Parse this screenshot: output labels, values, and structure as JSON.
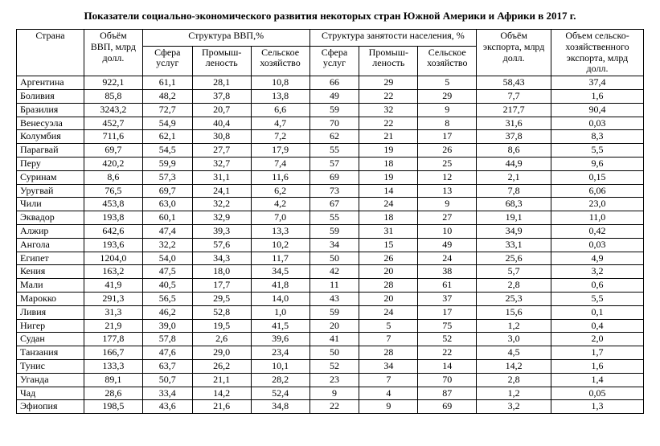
{
  "title": "Показатели социально-экономического развития некоторых стран Южной Америки и Африки в 2017 г.",
  "columns": {
    "country": "Страна",
    "gdp": "Объём ВВП, млрд долл.",
    "gdp_struct": "Структура ВВП,%",
    "emp_struct": "Структура занятости населения, %",
    "export": "Объём экспорта,  млрд долл.",
    "agri_export": "Объем сельско-хозяйственного экспорта, млрд долл.",
    "services": "Сфера услуг",
    "industry": "Промыш-леность",
    "agri": "Сельское хозяйство"
  },
  "rows": [
    {
      "c": "Аргентина",
      "gdp": "922,1",
      "s1": "61,1",
      "s2": "28,1",
      "s3": "10,8",
      "e1": "66",
      "e2": "29",
      "e3": "5",
      "ex": "58,43",
      "ax": "37,4"
    },
    {
      "c": "Боливия",
      "gdp": "85,8",
      "s1": "48,2",
      "s2": "37,8",
      "s3": "13,8",
      "e1": "49",
      "e2": "22",
      "e3": "29",
      "ex": "7,7",
      "ax": "1,6"
    },
    {
      "c": "Бразилия",
      "gdp": "3243,2",
      "s1": "72,7",
      "s2": "20,7",
      "s3": "6,6",
      "e1": "59",
      "e2": "32",
      "e3": "9",
      "ex": "217,7",
      "ax": "90,4"
    },
    {
      "c": "Венесуэла",
      "gdp": "452,7",
      "s1": "54,9",
      "s2": "40,4",
      "s3": "4,7",
      "e1": "70",
      "e2": "22",
      "e3": "8",
      "ex": "31,6",
      "ax": "0,03"
    },
    {
      "c": "Колумбия",
      "gdp": "711,6",
      "s1": "62,1",
      "s2": "30,8",
      "s3": "7,2",
      "e1": "62",
      "e2": "21",
      "e3": "17",
      "ex": "37,8",
      "ax": "8,3"
    },
    {
      "c": "Парагвай",
      "gdp": "69,7",
      "s1": "54,5",
      "s2": "27,7",
      "s3": "17,9",
      "e1": "55",
      "e2": "19",
      "e3": "26",
      "ex": "8,6",
      "ax": "5,5"
    },
    {
      "c": "Перу",
      "gdp": "420,2",
      "s1": "59,9",
      "s2": "32,7",
      "s3": "7,4",
      "e1": "57",
      "e2": "18",
      "e3": "25",
      "ex": "44,9",
      "ax": "9,6"
    },
    {
      "c": "Суринам",
      "gdp": "8,6",
      "s1": "57,3",
      "s2": "31,1",
      "s3": "11,6",
      "e1": "69",
      "e2": "19",
      "e3": "12",
      "ex": "2,1",
      "ax": "0,15"
    },
    {
      "c": "Уругвай",
      "gdp": "76,5",
      "s1": "69,7",
      "s2": "24,1",
      "s3": "6,2",
      "e1": "73",
      "e2": "14",
      "e3": "13",
      "ex": "7,8",
      "ax": "6,06"
    },
    {
      "c": "Чили",
      "gdp": "453,8",
      "s1": "63,0",
      "s2": "32,2",
      "s3": "4,2",
      "e1": "67",
      "e2": "24",
      "e3": "9",
      "ex": "68,3",
      "ax": "23,0"
    },
    {
      "c": "Эквадор",
      "gdp": "193,8",
      "s1": "60,1",
      "s2": "32,9",
      "s3": "7,0",
      "e1": "55",
      "e2": "18",
      "e3": "27",
      "ex": "19,1",
      "ax": "11,0"
    },
    {
      "c": "Алжир",
      "gdp": "642,6",
      "s1": "47,4",
      "s2": "39,3",
      "s3": "13,3",
      "e1": "59",
      "e2": "31",
      "e3": "10",
      "ex": "34,9",
      "ax": "0,42"
    },
    {
      "c": "Ангола",
      "gdp": "193,6",
      "s1": "32,2",
      "s2": "57,6",
      "s3": "10,2",
      "e1": "34",
      "e2": "15",
      "e3": "49",
      "ex": "33,1",
      "ax": "0,03"
    },
    {
      "c": "Египет",
      "gdp": "1204,0",
      "s1": "54,0",
      "s2": "34,3",
      "s3": "11,7",
      "e1": "50",
      "e2": "26",
      "e3": "24",
      "ex": "25,6",
      "ax": "4,9"
    },
    {
      "c": "Кения",
      "gdp": "163,2",
      "s1": "47,5",
      "s2": "18,0",
      "s3": "34,5",
      "e1": "42",
      "e2": "20",
      "e3": "38",
      "ex": "5,7",
      "ax": "3,2"
    },
    {
      "c": "Мали",
      "gdp": "41,9",
      "s1": "40,5",
      "s2": "17,7",
      "s3": "41,8",
      "e1": "11",
      "e2": "28",
      "e3": "61",
      "ex": "2,8",
      "ax": "0,6"
    },
    {
      "c": "Марокко",
      "gdp": "291,3",
      "s1": "56,5",
      "s2": "29,5",
      "s3": "14,0",
      "e1": "43",
      "e2": "20",
      "e3": "37",
      "ex": "25,3",
      "ax": "5,5"
    },
    {
      "c": "Ливия",
      "gdp": "31,3",
      "s1": "46,2",
      "s2": "52,8",
      "s3": "1,0",
      "e1": "59",
      "e2": "24",
      "e3": "17",
      "ex": "15,6",
      "ax": "0,1"
    },
    {
      "c": "Нигер",
      "gdp": "21,9",
      "s1": "39,0",
      "s2": "19,5",
      "s3": "41,5",
      "e1": "20",
      "e2": "5",
      "e3": "75",
      "ex": "1,2",
      "ax": "0,4"
    },
    {
      "c": "Судан",
      "gdp": "177,8",
      "s1": "57,8",
      "s2": "2,6",
      "s3": "39,6",
      "e1": "41",
      "e2": "7",
      "e3": "52",
      "ex": "3,0",
      "ax": "2,0"
    },
    {
      "c": "Танзания",
      "gdp": "166,7",
      "s1": "47,6",
      "s2": "29,0",
      "s3": "23,4",
      "e1": "50",
      "e2": "28",
      "e3": "22",
      "ex": "4,5",
      "ax": "1,7"
    },
    {
      "c": "Тунис",
      "gdp": "133,3",
      "s1": "63,7",
      "s2": "26,2",
      "s3": "10,1",
      "e1": "52",
      "e2": "34",
      "e3": "14",
      "ex": "14,2",
      "ax": "1,6"
    },
    {
      "c": "Уганда",
      "gdp": "89,1",
      "s1": "50,7",
      "s2": "21,1",
      "s3": "28,2",
      "e1": "23",
      "e2": "7",
      "e3": "70",
      "ex": "2,8",
      "ax": "1,4"
    },
    {
      "c": "Чад",
      "gdp": "28,6",
      "s1": "33,4",
      "s2": "14,2",
      "s3": "52,4",
      "e1": "9",
      "e2": "4",
      "e3": "87",
      "ex": "1,2",
      "ax": "0,05"
    },
    {
      "c": "Эфиопия",
      "gdp": "198,5",
      "s1": "43,6",
      "s2": "21,6",
      "s3": "34,8",
      "e1": "22",
      "e2": "9",
      "e3": "69",
      "ex": "3,2",
      "ax": "1,3"
    }
  ]
}
